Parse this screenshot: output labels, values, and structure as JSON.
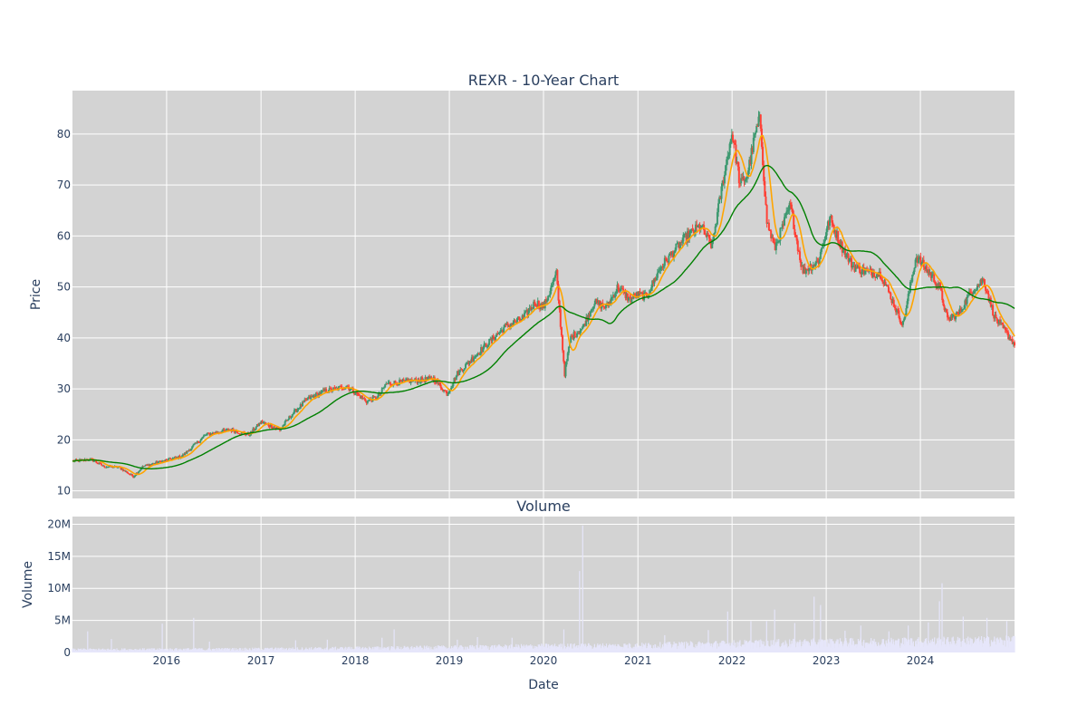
{
  "chart_data": [
    {
      "type": "candlestick",
      "title": "REXR - 10-Year Chart",
      "ylabel": "Price",
      "ylim": [
        8.5,
        88.5
      ],
      "yticks": [
        10,
        20,
        30,
        40,
        50,
        60,
        70,
        80
      ],
      "x_range": [
        "2015-01-01",
        "2024-12-31"
      ],
      "grid": true,
      "series_colors": {
        "up": "#3d9970",
        "down": "#ff4136",
        "short_ma": "#ffa500",
        "long_ma": "#008000"
      },
      "close_keyframes": [
        [
          "2015-01-01",
          15.8
        ],
        [
          "2015-03-15",
          16.2
        ],
        [
          "2015-05-01",
          14.8
        ],
        [
          "2015-07-01",
          14.6
        ],
        [
          "2015-08-25",
          12.8
        ],
        [
          "2015-10-01",
          14.8
        ],
        [
          "2016-01-01",
          16.0
        ],
        [
          "2016-03-01",
          16.8
        ],
        [
          "2016-06-01",
          21.0
        ],
        [
          "2016-09-01",
          22.0
        ],
        [
          "2016-11-15",
          21.0
        ],
        [
          "2017-01-01",
          23.5
        ],
        [
          "2017-03-15",
          22.0
        ],
        [
          "2017-05-01",
          25.0
        ],
        [
          "2017-07-01",
          28.0
        ],
        [
          "2017-09-01",
          29.5
        ],
        [
          "2017-12-01",
          30.5
        ],
        [
          "2018-02-15",
          27.5
        ],
        [
          "2018-04-01",
          28.5
        ],
        [
          "2018-05-01",
          31.0
        ],
        [
          "2018-08-01",
          31.5
        ],
        [
          "2018-11-01",
          32.0
        ],
        [
          "2018-12-24",
          29.0
        ],
        [
          "2019-02-01",
          33.0
        ],
        [
          "2019-05-01",
          37.5
        ],
        [
          "2019-08-01",
          42.0
        ],
        [
          "2019-10-15",
          44.0
        ],
        [
          "2019-12-01",
          47.0
        ],
        [
          "2020-01-01",
          46.0
        ],
        [
          "2020-02-20",
          52.5
        ],
        [
          "2020-03-23",
          33.0
        ],
        [
          "2020-04-15",
          40.0
        ],
        [
          "2020-06-01",
          42.0
        ],
        [
          "2020-07-15",
          47.0
        ],
        [
          "2020-09-01",
          46.0
        ],
        [
          "2020-10-15",
          50.0
        ],
        [
          "2020-12-01",
          47.5
        ],
        [
          "2021-01-01",
          48.5
        ],
        [
          "2021-02-01",
          48.0
        ],
        [
          "2021-04-01",
          54.0
        ],
        [
          "2021-07-01",
          59.5
        ],
        [
          "2021-09-01",
          62.0
        ],
        [
          "2021-10-15",
          58.0
        ],
        [
          "2021-12-01",
          72.0
        ],
        [
          "2022-01-01",
          80.5
        ],
        [
          "2022-02-01",
          70.0
        ],
        [
          "2022-03-01",
          72.0
        ],
        [
          "2022-04-01",
          80.0
        ],
        [
          "2022-04-20",
          83.0
        ],
        [
          "2022-05-15",
          63.0
        ],
        [
          "2022-06-15",
          57.5
        ],
        [
          "2022-08-15",
          66.0
        ],
        [
          "2022-10-01",
          53.0
        ],
        [
          "2022-12-01",
          55.0
        ],
        [
          "2023-01-15",
          63.5
        ],
        [
          "2023-03-01",
          58.0
        ],
        [
          "2023-04-15",
          54.0
        ],
        [
          "2023-06-01",
          53.0
        ],
        [
          "2023-08-01",
          52.5
        ],
        [
          "2023-10-25",
          42.5
        ],
        [
          "2023-12-15",
          56.0
        ],
        [
          "2024-02-01",
          53.0
        ],
        [
          "2024-03-15",
          50.0
        ],
        [
          "2024-04-15",
          43.5
        ],
        [
          "2024-06-01",
          45.0
        ],
        [
          "2024-07-15",
          49.0
        ],
        [
          "2024-09-01",
          51.5
        ],
        [
          "2024-10-15",
          44.0
        ],
        [
          "2024-12-31",
          38.8
        ]
      ]
    },
    {
      "type": "bar",
      "title": "Volume",
      "ylabel": "Volume",
      "xlabel": "Date",
      "ylim": [
        0,
        21200000
      ],
      "yticks": [
        0,
        5000000,
        10000000,
        15000000,
        20000000
      ],
      "ytick_labels": [
        "0",
        "5M",
        "10M",
        "15M",
        "20M"
      ],
      "xtick_labels": [
        "2016",
        "2017",
        "2018",
        "2019",
        "2020",
        "2021",
        "2022",
        "2023",
        "2024"
      ],
      "bar_color": "#e6e6fa",
      "base_volume_keyframes": [
        [
          "2015-01-01",
          450000
        ],
        [
          "2017-01-01",
          550000
        ],
        [
          "2019-01-01",
          800000
        ],
        [
          "2020-01-01",
          1000000
        ],
        [
          "2021-01-01",
          1100000
        ],
        [
          "2022-01-01",
          1400000
        ],
        [
          "2023-01-01",
          1600000
        ],
        [
          "2024-12-31",
          1900000
        ]
      ],
      "spikes": [
        [
          "2015-03-01",
          3300000
        ],
        [
          "2015-06-01",
          2100000
        ],
        [
          "2015-12-15",
          4500000
        ],
        [
          "2016-04-15",
          5400000
        ],
        [
          "2016-06-15",
          1700000
        ],
        [
          "2017-05-15",
          1900000
        ],
        [
          "2017-09-15",
          2000000
        ],
        [
          "2018-04-15",
          2300000
        ],
        [
          "2018-06-01",
          3600000
        ],
        [
          "2019-02-01",
          2000000
        ],
        [
          "2019-04-20",
          2400000
        ],
        [
          "2019-09-01",
          2300000
        ],
        [
          "2020-03-20",
          3600000
        ],
        [
          "2020-05-20",
          12700000
        ],
        [
          "2020-06-01",
          19800000
        ],
        [
          "2021-04-15",
          2700000
        ],
        [
          "2021-10-01",
          3500000
        ],
        [
          "2021-12-15",
          6400000
        ],
        [
          "2022-03-15",
          4900000
        ],
        [
          "2022-05-15",
          4900000
        ],
        [
          "2022-06-15",
          6700000
        ],
        [
          "2022-09-01",
          4600000
        ],
        [
          "2022-11-15",
          8700000
        ],
        [
          "2022-12-10",
          7400000
        ],
        [
          "2023-03-15",
          3400000
        ],
        [
          "2023-05-15",
          4200000
        ],
        [
          "2023-09-01",
          3300000
        ],
        [
          "2023-11-15",
          4200000
        ],
        [
          "2024-02-01",
          4700000
        ],
        [
          "2024-03-15",
          8000000
        ],
        [
          "2024-03-25",
          10800000
        ],
        [
          "2024-06-15",
          5600000
        ],
        [
          "2024-09-15",
          5400000
        ],
        [
          "2024-12-01",
          4900000
        ]
      ]
    }
  ]
}
